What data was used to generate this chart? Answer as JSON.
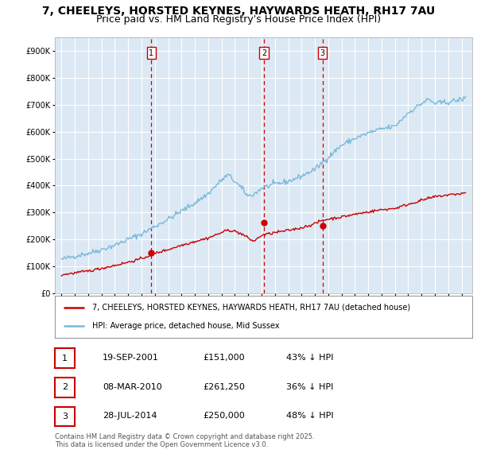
{
  "title": "7, CHEELEYS, HORSTED KEYNES, HAYWARDS HEATH, RH17 7AU",
  "subtitle": "Price paid vs. HM Land Registry's House Price Index (HPI)",
  "ylim": [
    0,
    950000
  ],
  "yticks": [
    0,
    100000,
    200000,
    300000,
    400000,
    500000,
    600000,
    700000,
    800000,
    900000
  ],
  "ytick_labels": [
    "£0",
    "£100K",
    "£200K",
    "£300K",
    "£400K",
    "£500K",
    "£600K",
    "£700K",
    "£800K",
    "£900K"
  ],
  "bg_color": "#dce9f5",
  "grid_color": "#ffffff",
  "red_color": "#cc0000",
  "blue_color": "#7ab8d9",
  "sale_year_floats": [
    2001.72,
    2010.18,
    2014.57
  ],
  "sale_prices": [
    151000,
    261250,
    250000
  ],
  "sale_labels": [
    "1",
    "2",
    "3"
  ],
  "legend_line1": "7, CHEELEYS, HORSTED KEYNES, HAYWARDS HEATH, RH17 7AU (detached house)",
  "legend_line2": "HPI: Average price, detached house, Mid Sussex",
  "table_data": [
    [
      "1",
      "19-SEP-2001",
      "£151,000",
      "43% ↓ HPI"
    ],
    [
      "2",
      "08-MAR-2010",
      "£261,250",
      "36% ↓ HPI"
    ],
    [
      "3",
      "28-JUL-2014",
      "£250,000",
      "48% ↓ HPI"
    ]
  ],
  "footer": "Contains HM Land Registry data © Crown copyright and database right 2025.\nThis data is licensed under the Open Government Licence v3.0.",
  "title_fontsize": 10,
  "subtitle_fontsize": 9,
  "tick_fontsize": 7,
  "legend_fontsize": 7,
  "table_fontsize": 8,
  "footer_fontsize": 6
}
